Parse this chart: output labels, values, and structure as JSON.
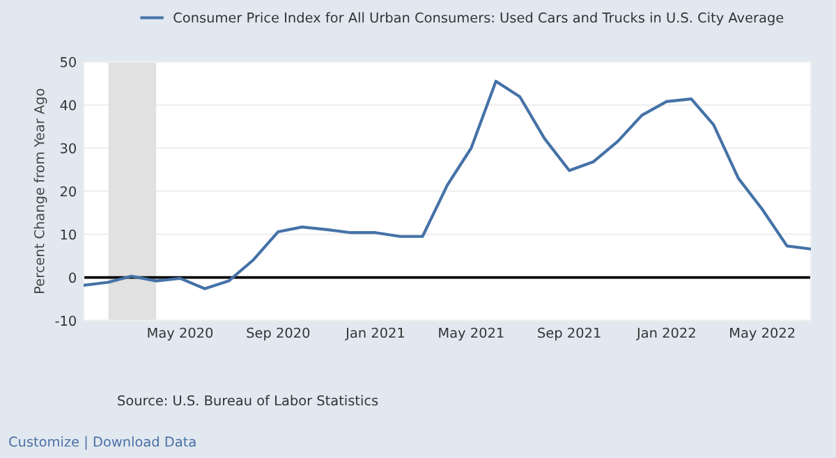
{
  "chart_data": {
    "type": "line",
    "ylabel": "Percent Change from Year Ago",
    "x": [
      "2020-01",
      "2020-02",
      "2020-03",
      "2020-04",
      "2020-05",
      "2020-06",
      "2020-07",
      "2020-08",
      "2020-09",
      "2020-10",
      "2020-11",
      "2020-12",
      "2021-01",
      "2021-02",
      "2021-03",
      "2021-04",
      "2021-05",
      "2021-06",
      "2021-07",
      "2021-08",
      "2021-09",
      "2021-10",
      "2021-11",
      "2021-12",
      "2022-01",
      "2022-02",
      "2022-03",
      "2022-04",
      "2022-05",
      "2022-06",
      "2022-07"
    ],
    "series": [
      {
        "name": "Consumer Price Index for All Urban Consumers: Used Cars and Trucks in U.S. City Average",
        "color": "#4572a7",
        "values": [
          -1.8,
          -1.1,
          0.3,
          -0.8,
          -0.2,
          -2.6,
          -0.8,
          4.1,
          10.6,
          11.7,
          11.1,
          10.4,
          10.4,
          9.5,
          9.5,
          21.4,
          30.0,
          45.5,
          41.9,
          32.2,
          24.8,
          26.8,
          31.6,
          37.6,
          40.8,
          41.4,
          35.4,
          23.0,
          15.8,
          7.3,
          6.6
        ]
      }
    ],
    "xlim": [
      "2020-01",
      "2022-07"
    ],
    "xticks": [
      {
        "value": "2020-05",
        "label": "May 2020"
      },
      {
        "value": "2020-09",
        "label": "Sep 2020"
      },
      {
        "value": "2021-01",
        "label": "Jan 2021"
      },
      {
        "value": "2021-05",
        "label": "May 2021"
      },
      {
        "value": "2021-09",
        "label": "Sep 2021"
      },
      {
        "value": "2022-01",
        "label": "Jan 2022"
      },
      {
        "value": "2022-05",
        "label": "May 2022"
      }
    ],
    "ylim": [
      -10,
      50
    ],
    "yticks": [
      -10,
      0,
      10,
      20,
      30,
      40,
      50
    ],
    "grid": "y",
    "legend": "top",
    "marker": "none",
    "line_style": "solid",
    "ref_lines": [
      {
        "axis": "y",
        "value": 0,
        "color": "#000000",
        "line_style": "solid"
      }
    ],
    "bands": [
      {
        "axis": "x",
        "from": "2020-02",
        "to": "2020-04",
        "color": "#e1e1e1"
      }
    ],
    "annotations": [
      "Source: U.S. Bureau of Labor Statistics",
      "Customize | Download Data"
    ]
  }
}
